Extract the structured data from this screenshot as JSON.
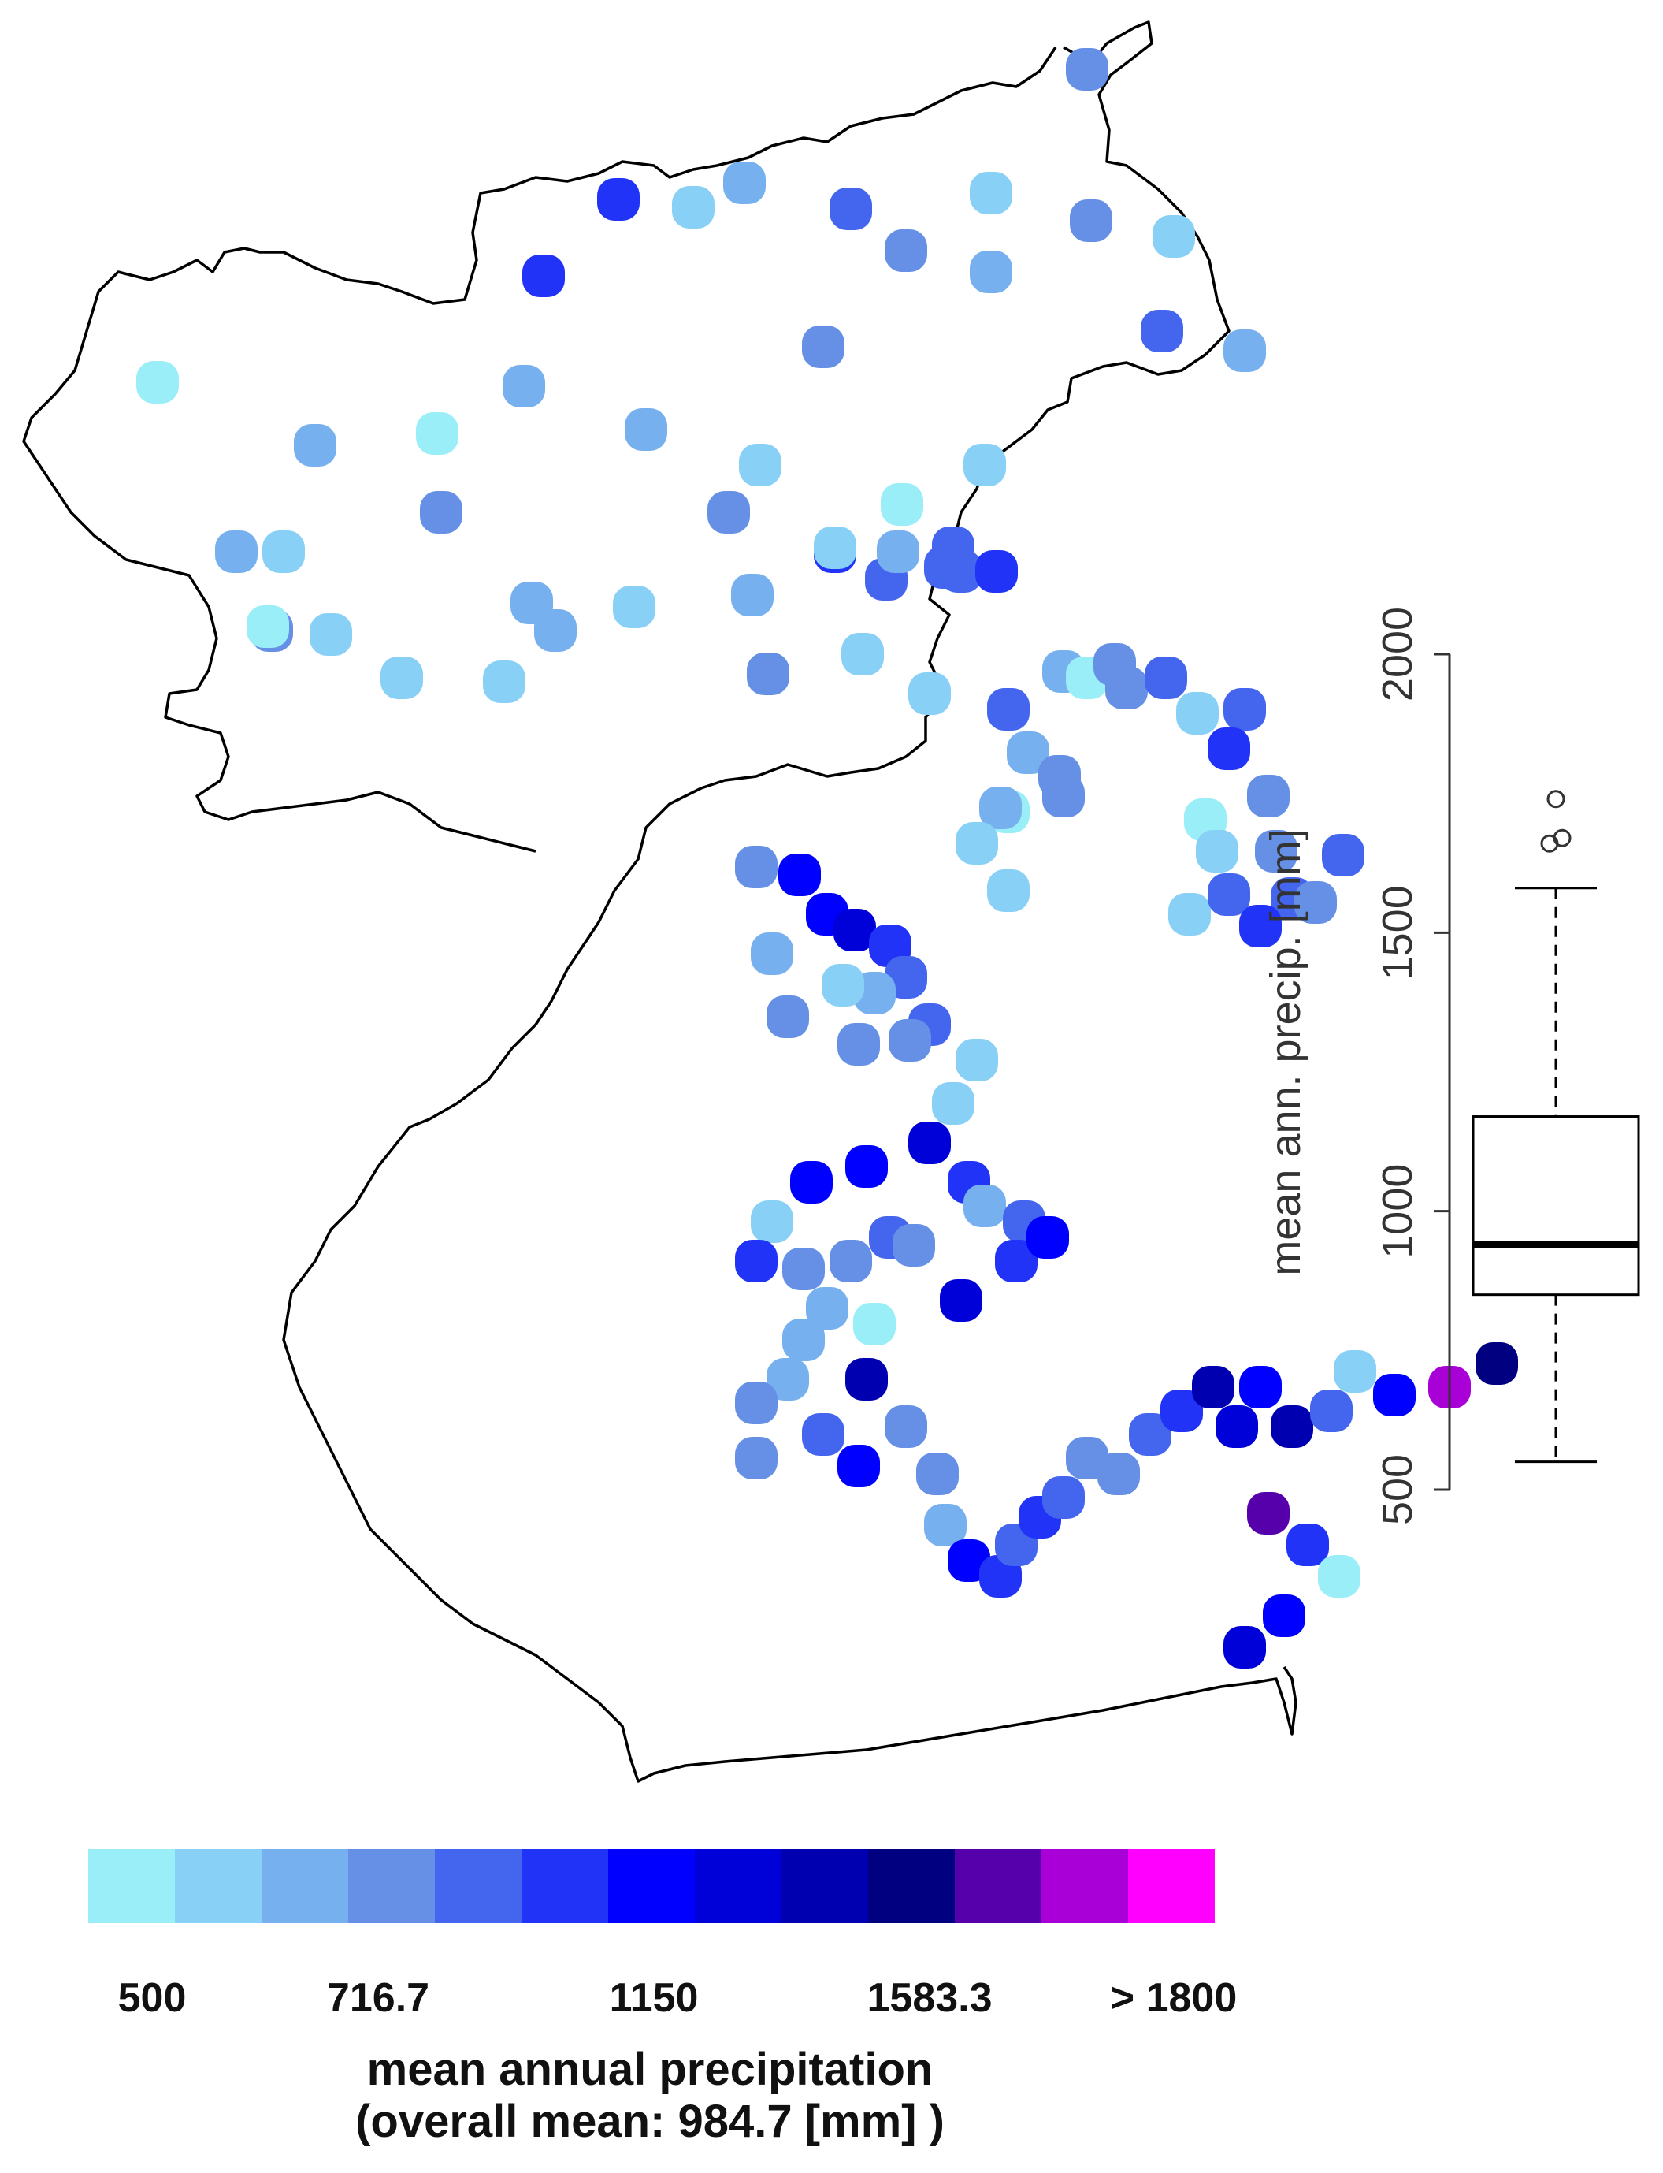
{
  "map": {
    "stations_legend": "precipitation stations colored by mean annual precipitation class"
  },
  "boxplot": {
    "ylabel": "mean ann. precip. [mm]",
    "ticks": [
      "500",
      "1000",
      "1500",
      "2000"
    ],
    "tick_values": [
      500,
      1000,
      1500,
      2000
    ],
    "ylim": [
      500,
      2000
    ],
    "stats": {
      "min": 550,
      "q1": 850,
      "median": 940,
      "q3": 1170,
      "max": 1580
    },
    "outliers": [
      1660,
      1670,
      1740
    ]
  },
  "legend": {
    "colors": [
      "#99eef8",
      "#88d0f5",
      "#77b0ee",
      "#6690e6",
      "#4466ee",
      "#2233f8",
      "#0000ff",
      "#0000d8",
      "#0000b0",
      "#000080",
      "#5500aa",
      "#aa00d8",
      "#ff00ff"
    ],
    "tick_labels": [
      "500",
      "716.7",
      "1150",
      "1583.3",
      "> 1800"
    ],
    "title_line1": "mean annual precipitation",
    "title_line2": "(overall mean: 984.7 [mm] )"
  },
  "chart_data": {
    "type": "scatter",
    "title": "mean annual precipitation",
    "subtitle": "(overall mean: 984.7 [mm] )",
    "color_scale_breaks": [
      500,
      716.7,
      1150,
      1583.3,
      1800
    ],
    "stations": [
      {
        "cls": 3,
        "v": 900
      },
      {
        "cls": 5,
        "v": 1150
      },
      {
        "cls": 1,
        "v": 650
      },
      {
        "cls": 2,
        "v": 700
      },
      {
        "cls": 4,
        "v": 1050
      },
      {
        "cls": 1,
        "v": 650
      },
      {
        "cls": 3,
        "v": 900
      },
      {
        "cls": 1,
        "v": 650
      },
      {
        "cls": 3,
        "v": 900
      },
      {
        "cls": 2,
        "v": 700
      },
      {
        "cls": 5,
        "v": 1150
      },
      {
        "cls": 0,
        "v": 550
      },
      {
        "cls": 2,
        "v": 720
      },
      {
        "cls": 0,
        "v": 520
      },
      {
        "cls": 2,
        "v": 780
      },
      {
        "cls": 3,
        "v": 900
      }
    ],
    "value_range": [
      500,
      1800
    ],
    "unit": "mm"
  }
}
